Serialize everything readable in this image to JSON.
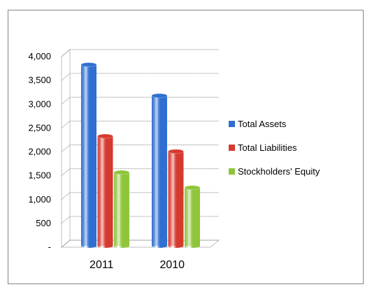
{
  "chart_data": {
    "type": "bar",
    "categories": [
      "2011",
      "2010"
    ],
    "series": [
      {
        "name": "Total Assets",
        "values": [
          3800,
          3150
        ],
        "color": "#2f6fd1"
      },
      {
        "name": "Total Liabilities",
        "values": [
          2300,
          1980
        ],
        "color": "#d63a30"
      },
      {
        "name": "Stockholders' Equity",
        "values": [
          1540,
          1220
        ],
        "color": "#8fc53a"
      }
    ],
    "yticks": [
      "-",
      "500",
      "1,000",
      "1,500",
      "2,000",
      "2,500",
      "3,000",
      "3,500",
      "4,000"
    ],
    "ylim": [
      0,
      4000
    ],
    "title": "",
    "xlabel": "",
    "ylabel": "",
    "grid": true,
    "legend": "right",
    "style": "3d-cylinder"
  }
}
